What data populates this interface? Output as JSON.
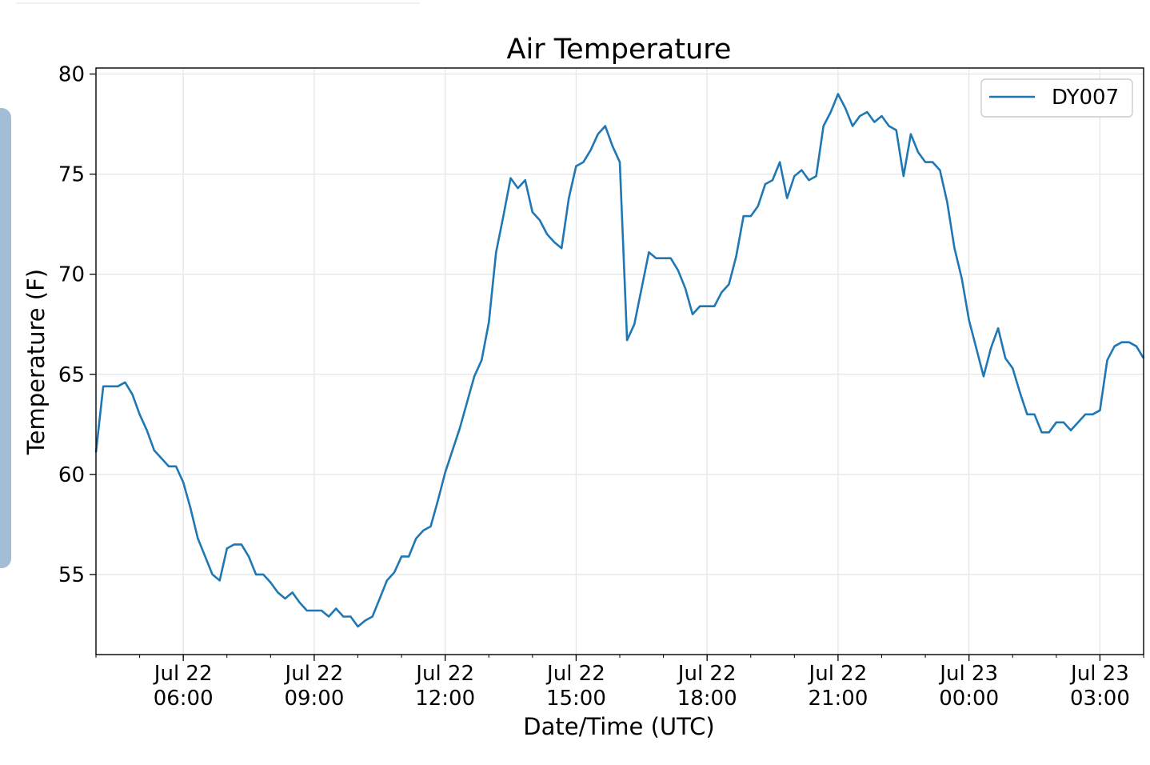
{
  "chart_data": {
    "type": "line",
    "title": "Air Temperature",
    "xlabel": "Date/Time (UTC)",
    "ylabel": "Temperature (F)",
    "ylim": [
      51,
      80.3
    ],
    "xlim": [
      "2019-07-22T04:00",
      "2019-07-23T04:00"
    ],
    "grid": true,
    "legend_position": "top-right",
    "y_ticks": [
      55,
      60,
      65,
      70,
      75,
      80
    ],
    "x_ticks": [
      {
        "t": "2019-07-22T06:00",
        "line1": "Jul 22",
        "line2": "06:00"
      },
      {
        "t": "2019-07-22T09:00",
        "line1": "Jul 22",
        "line2": "09:00"
      },
      {
        "t": "2019-07-22T12:00",
        "line1": "Jul 22",
        "line2": "12:00"
      },
      {
        "t": "2019-07-22T15:00",
        "line1": "Jul 22",
        "line2": "15:00"
      },
      {
        "t": "2019-07-22T18:00",
        "line1": "Jul 22",
        "line2": "18:00"
      },
      {
        "t": "2019-07-22T21:00",
        "line1": "Jul 22",
        "line2": "21:00"
      },
      {
        "t": "2019-07-23T00:00",
        "line1": "Jul 23",
        "line2": "00:00"
      },
      {
        "t": "2019-07-23T03:00",
        "line1": "Jul 23",
        "line2": "03:00"
      }
    ],
    "series": [
      {
        "name": "DY007",
        "color": "#1f77b4",
        "x": [
          "2019-07-22T04:00",
          "2019-07-22T04:10",
          "2019-07-22T04:20",
          "2019-07-22T04:30",
          "2019-07-22T04:40",
          "2019-07-22T04:50",
          "2019-07-22T05:00",
          "2019-07-22T05:10",
          "2019-07-22T05:20",
          "2019-07-22T05:30",
          "2019-07-22T05:40",
          "2019-07-22T05:50",
          "2019-07-22T06:00",
          "2019-07-22T06:10",
          "2019-07-22T06:20",
          "2019-07-22T06:30",
          "2019-07-22T06:40",
          "2019-07-22T06:50",
          "2019-07-22T07:00",
          "2019-07-22T07:10",
          "2019-07-22T07:20",
          "2019-07-22T07:30",
          "2019-07-22T07:40",
          "2019-07-22T07:50",
          "2019-07-22T08:00",
          "2019-07-22T08:10",
          "2019-07-22T08:20",
          "2019-07-22T08:30",
          "2019-07-22T08:40",
          "2019-07-22T08:50",
          "2019-07-22T09:00",
          "2019-07-22T09:10",
          "2019-07-22T09:20",
          "2019-07-22T09:30",
          "2019-07-22T09:40",
          "2019-07-22T09:50",
          "2019-07-22T10:00",
          "2019-07-22T10:10",
          "2019-07-22T10:20",
          "2019-07-22T10:30",
          "2019-07-22T10:40",
          "2019-07-22T10:50",
          "2019-07-22T11:00",
          "2019-07-22T11:10",
          "2019-07-22T11:20",
          "2019-07-22T11:30",
          "2019-07-22T11:40",
          "2019-07-22T11:50",
          "2019-07-22T12:00",
          "2019-07-22T12:10",
          "2019-07-22T12:20",
          "2019-07-22T12:30",
          "2019-07-22T12:40",
          "2019-07-22T12:50",
          "2019-07-22T13:00",
          "2019-07-22T13:10",
          "2019-07-22T13:20",
          "2019-07-22T13:30",
          "2019-07-22T13:40",
          "2019-07-22T13:50",
          "2019-07-22T14:00",
          "2019-07-22T14:10",
          "2019-07-22T14:20",
          "2019-07-22T14:30",
          "2019-07-22T14:40",
          "2019-07-22T14:50",
          "2019-07-22T15:00",
          "2019-07-22T15:10",
          "2019-07-22T15:20",
          "2019-07-22T15:30",
          "2019-07-22T15:40",
          "2019-07-22T15:50",
          "2019-07-22T16:00",
          "2019-07-22T16:10",
          "2019-07-22T16:20",
          "2019-07-22T16:30",
          "2019-07-22T16:40",
          "2019-07-22T16:50",
          "2019-07-22T17:00",
          "2019-07-22T17:10",
          "2019-07-22T17:20",
          "2019-07-22T17:30",
          "2019-07-22T17:40",
          "2019-07-22T17:50",
          "2019-07-22T18:00",
          "2019-07-22T18:10",
          "2019-07-22T18:20",
          "2019-07-22T18:30",
          "2019-07-22T18:40",
          "2019-07-22T18:50",
          "2019-07-22T19:00",
          "2019-07-22T19:10",
          "2019-07-22T19:20",
          "2019-07-22T19:30",
          "2019-07-22T19:40",
          "2019-07-22T19:50",
          "2019-07-22T20:00",
          "2019-07-22T20:10",
          "2019-07-22T20:20",
          "2019-07-22T20:30",
          "2019-07-22T20:40",
          "2019-07-22T20:50",
          "2019-07-22T21:00",
          "2019-07-22T21:10",
          "2019-07-22T21:20",
          "2019-07-22T21:30",
          "2019-07-22T21:40",
          "2019-07-22T21:50",
          "2019-07-22T22:00",
          "2019-07-22T22:10",
          "2019-07-22T22:20",
          "2019-07-22T22:30",
          "2019-07-22T22:40",
          "2019-07-22T22:50",
          "2019-07-22T23:00",
          "2019-07-22T23:10",
          "2019-07-22T23:20",
          "2019-07-22T23:30",
          "2019-07-22T23:40",
          "2019-07-22T23:50",
          "2019-07-23T00:00",
          "2019-07-23T00:10",
          "2019-07-23T00:20",
          "2019-07-23T00:30",
          "2019-07-23T00:40",
          "2019-07-23T00:50",
          "2019-07-23T01:00",
          "2019-07-23T01:10",
          "2019-07-23T01:20",
          "2019-07-23T01:30",
          "2019-07-23T01:40",
          "2019-07-23T01:50",
          "2019-07-23T02:00",
          "2019-07-23T02:10",
          "2019-07-23T02:20",
          "2019-07-23T02:30",
          "2019-07-23T02:40",
          "2019-07-23T02:50",
          "2019-07-23T03:00",
          "2019-07-23T03:10",
          "2019-07-23T03:20",
          "2019-07-23T03:30",
          "2019-07-23T03:40",
          "2019-07-23T03:50",
          "2019-07-23T04:00"
        ],
        "y": [
          61.1,
          64.4,
          64.4,
          64.4,
          64.6,
          64.0,
          63.0,
          62.2,
          61.2,
          60.8,
          60.4,
          60.4,
          59.6,
          58.3,
          56.8,
          55.9,
          55.0,
          54.7,
          56.3,
          56.5,
          56.5,
          55.9,
          55.0,
          55.0,
          54.6,
          54.1,
          53.8,
          54.1,
          53.6,
          53.2,
          53.2,
          53.2,
          52.9,
          53.3,
          52.9,
          52.9,
          52.4,
          52.7,
          52.9,
          53.8,
          54.7,
          55.1,
          55.9,
          55.9,
          56.8,
          57.2,
          57.4,
          58.7,
          60.1,
          61.2,
          62.3,
          63.6,
          64.9,
          65.7,
          67.6,
          71.1,
          72.9,
          74.8,
          74.3,
          74.7,
          73.1,
          72.7,
          72.0,
          71.6,
          71.3,
          73.8,
          75.4,
          75.6,
          76.2,
          77.0,
          77.4,
          76.4,
          75.6,
          66.7,
          67.5,
          69.3,
          71.1,
          70.8,
          70.8,
          70.8,
          70.2,
          69.3,
          68.0,
          68.4,
          68.4,
          68.4,
          69.1,
          69.5,
          70.9,
          72.9,
          72.9,
          73.4,
          74.5,
          74.7,
          75.6,
          73.8,
          74.9,
          75.2,
          74.7,
          74.9,
          77.4,
          78.1,
          79.0,
          78.3,
          77.4,
          77.9,
          78.1,
          77.6,
          77.9,
          77.4,
          77.2,
          74.9,
          77.0,
          76.1,
          75.6,
          75.6,
          75.2,
          73.6,
          71.3,
          69.8,
          67.7,
          66.3,
          64.9,
          66.3,
          67.3,
          65.8,
          65.3,
          64.1,
          63.0,
          63.0,
          62.1,
          62.1,
          62.6,
          62.6,
          62.2,
          62.6,
          63.0,
          63.0,
          63.2,
          65.7,
          66.4,
          66.6,
          66.6,
          66.4,
          65.8
        ]
      }
    ]
  }
}
